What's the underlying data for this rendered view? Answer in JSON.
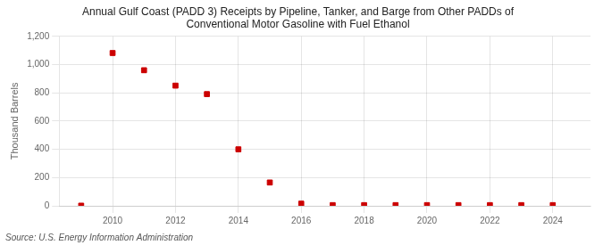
{
  "chart_data": {
    "type": "scatter",
    "title": [
      "Annual Gulf Coast (PADD 3) Receipts by Pipeline, Tanker, and Barge from Other PADDs of",
      "Conventional Motor Gasoline with Fuel Ethanol"
    ],
    "y_label": "Thousand Barrels",
    "annotations": [
      "Source: U.S. Energy Information Administration"
    ],
    "x": [
      2009,
      2010,
      2011,
      2012,
      2013,
      2014,
      2015,
      2016,
      2017,
      2018,
      2019,
      2020,
      2021,
      2022,
      2023,
      2024
    ],
    "values": [
      1,
      1082,
      960,
      851,
      791,
      400,
      165,
      15,
      5,
      5,
      5,
      5,
      5,
      5,
      5,
      5
    ],
    "color": "#cc0000",
    "marker": "square",
    "xlim": [
      2008.3,
      2025.2
    ],
    "xticks": [
      2010,
      2012,
      2014,
      2016,
      2018,
      2020,
      2022,
      2024
    ],
    "ylim": [
      0,
      1200
    ],
    "yticks": [
      0,
      200,
      400,
      600,
      800,
      {
        "value": 1000,
        "label": "1,000"
      },
      {
        "value": 1200,
        "label": "1,200"
      }
    ],
    "grid": true
  }
}
